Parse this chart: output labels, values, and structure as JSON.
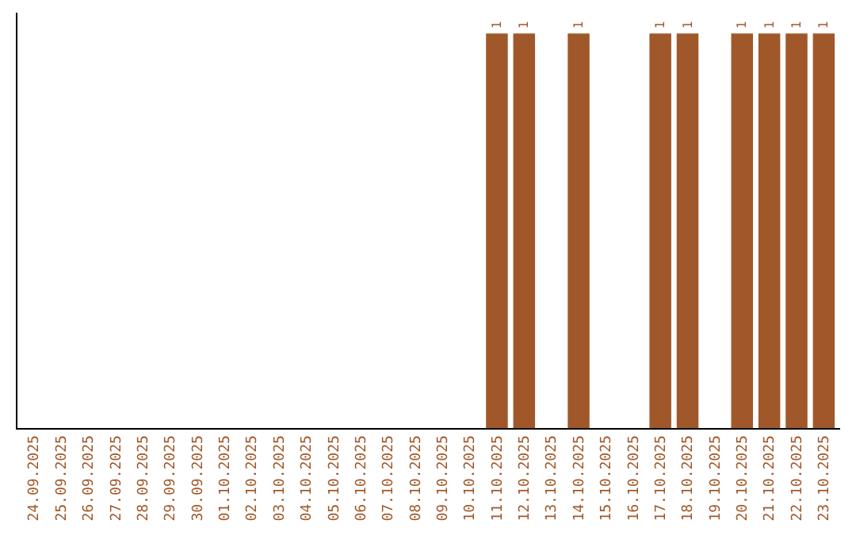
{
  "chart_data": {
    "type": "bar",
    "categories": [
      "24.09.2025",
      "25.09.2025",
      "26.09.2025",
      "27.09.2025",
      "28.09.2025",
      "29.09.2025",
      "30.09.2025",
      "01.10.2025",
      "02.10.2025",
      "03.10.2025",
      "04.10.2025",
      "05.10.2025",
      "06.10.2025",
      "07.10.2025",
      "08.10.2025",
      "09.10.2025",
      "10.10.2025",
      "11.10.2025",
      "12.10.2025",
      "13.10.2025",
      "14.10.2025",
      "15.10.2025",
      "16.10.2025",
      "17.10.2025",
      "18.10.2025",
      "19.10.2025",
      "20.10.2025",
      "21.10.2025",
      "22.10.2025",
      "23.10.2025"
    ],
    "values": [
      null,
      null,
      null,
      null,
      null,
      null,
      null,
      null,
      null,
      null,
      null,
      null,
      null,
      null,
      null,
      null,
      null,
      1,
      1,
      null,
      1,
      null,
      null,
      1,
      1,
      null,
      1,
      1,
      1,
      1
    ],
    "data_labels": true,
    "color": "#a0582a",
    "tick_labels": "x"
  }
}
